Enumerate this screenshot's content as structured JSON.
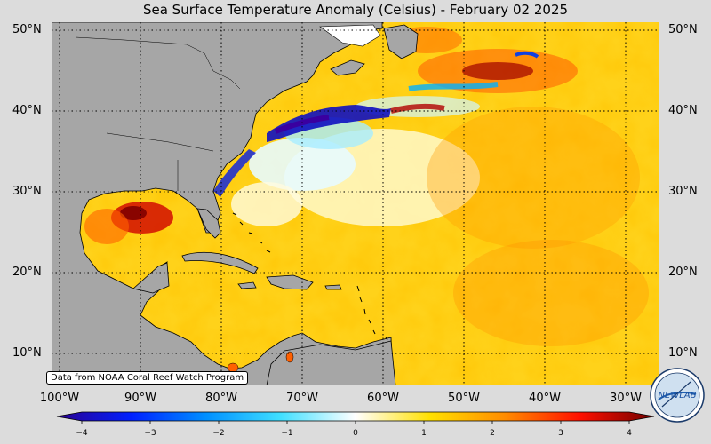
{
  "title": "Sea Surface Temperature Anomaly (Celsius) - February 02 2025",
  "credit": "Data from NOAA Coral Reef Watch Program",
  "lat_labels": [
    "50°N",
    "40°N",
    "30°N",
    "20°N",
    "10°N"
  ],
  "lat_labels_right": [
    "50°N",
    "40°N",
    "30°N",
    "20°N",
    "10°N"
  ],
  "lon_labels": [
    "100°W",
    "90°W",
    "80°W",
    "70°W",
    "60°W",
    "50°W",
    "40°W",
    "30°W"
  ],
  "colorbar": {
    "ticks": [
      "−4",
      "−3",
      "−2",
      "−1",
      "0",
      "1",
      "2",
      "3",
      "4"
    ],
    "min": -4,
    "max": 4
  },
  "logo_text": "NEWLAB",
  "colors": {
    "land": "#a6a6a6",
    "cold_extreme": "#2a0090",
    "warm_extreme": "#7a0000",
    "neutral": "#ffffff"
  }
}
